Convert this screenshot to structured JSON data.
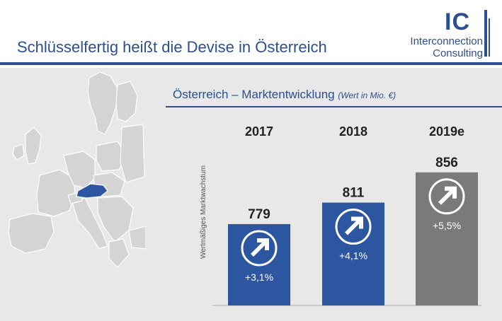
{
  "header": {
    "title": "Schlüsselfertig heißt die Devise in Österreich",
    "logo_letters": "IC",
    "logo_name_line1": "Interconnection",
    "logo_name_line2": "Consulting"
  },
  "colors": {
    "brand": "#2c4f8f",
    "bar_actual": "#2c56a0",
    "bar_estimate": "#7a7a7a",
    "background": "#e8e8e8"
  },
  "map": {
    "highlight_country": "Österreich",
    "highlight_color": "#2c56a0"
  },
  "chart_title": "Österreich – Marktentwicklung",
  "chart_unit": "(Wert in Mio. €)",
  "chart_data": {
    "type": "bar",
    "categories": [
      "2017",
      "2018",
      "2019e"
    ],
    "values": [
      779,
      811,
      856
    ],
    "value_labels": [
      "779",
      "811",
      "856"
    ],
    "growth_labels": [
      "+3,1%",
      "+4,1%",
      "+5,5%"
    ],
    "ylabel": "Wertmäßiges Marktwachstum",
    "grid": false
  }
}
